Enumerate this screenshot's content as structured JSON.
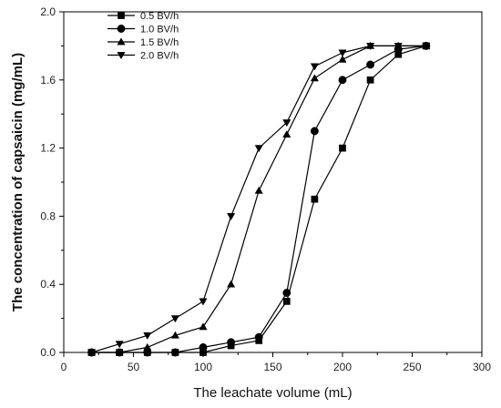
{
  "chart_data": {
    "type": "line",
    "xlabel": "The leachate volume (mL)",
    "ylabel": "The concentration of capsaicin (mg/mL)",
    "xlim": [
      0,
      300
    ],
    "ylim": [
      0.0,
      2.0
    ],
    "x_ticks": [
      0,
      50,
      100,
      150,
      200,
      250,
      300
    ],
    "x_tick_labels": [
      "0",
      "50",
      "100",
      "150",
      "200",
      "250",
      "300"
    ],
    "y_ticks": [
      0.0,
      0.4,
      0.8,
      1.2,
      1.6,
      2.0
    ],
    "y_tick_labels": [
      "0.0",
      "0.4",
      "0.8",
      "1.2",
      "1.6",
      "2.0"
    ],
    "grid": false,
    "legend_position": "top-left",
    "series": [
      {
        "name": "0.5 BV/h",
        "marker": "square",
        "x": [
          20,
          40,
          60,
          80,
          100,
          120,
          140,
          160,
          180,
          200,
          220,
          240,
          260
        ],
        "y": [
          0.0,
          0.0,
          0.0,
          0.0,
          0.0,
          0.04,
          0.07,
          0.3,
          0.9,
          1.2,
          1.6,
          1.75,
          1.8
        ]
      },
      {
        "name": "1.0 BV/h",
        "marker": "circle",
        "x": [
          20,
          40,
          60,
          80,
          100,
          120,
          140,
          160,
          180,
          200,
          220,
          240,
          260
        ],
        "y": [
          0.0,
          0.0,
          0.0,
          0.0,
          0.03,
          0.06,
          0.09,
          0.35,
          1.3,
          1.6,
          1.69,
          1.78,
          1.8
        ]
      },
      {
        "name": "1.5 BV/h",
        "marker": "triangle-up",
        "x": [
          20,
          40,
          60,
          80,
          100,
          120,
          140,
          160,
          180,
          200,
          220,
          240,
          260
        ],
        "y": [
          0.0,
          0.0,
          0.03,
          0.1,
          0.15,
          0.4,
          0.95,
          1.28,
          1.61,
          1.72,
          1.8,
          1.8,
          1.8
        ]
      },
      {
        "name": "2.0 BV/h",
        "marker": "triangle-down",
        "x": [
          20,
          40,
          60,
          80,
          100,
          120,
          140,
          160,
          180,
          200,
          220,
          240,
          260
        ],
        "y": [
          0.0,
          0.05,
          0.1,
          0.2,
          0.3,
          0.8,
          1.2,
          1.35,
          1.68,
          1.76,
          1.8,
          1.8,
          1.8
        ]
      }
    ]
  }
}
